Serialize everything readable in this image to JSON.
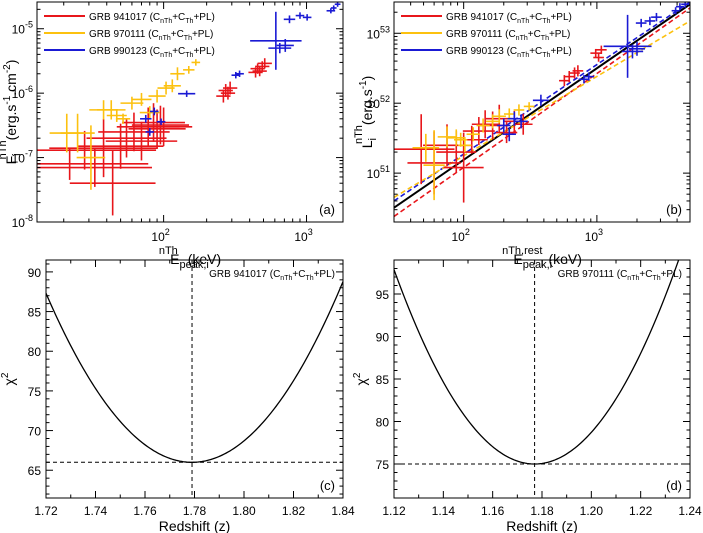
{
  "chart_data": [
    {
      "id": "a",
      "type": "scatter",
      "panel_label": "(a)",
      "xscale": "log",
      "yscale": "log",
      "xlim": [
        13,
        1800
      ],
      "ylim": [
        1e-08,
        2.6e-05
      ],
      "xticks": [
        {
          "v": 100,
          "base": "10",
          "exp": "2"
        },
        {
          "v": 1000,
          "base": "10",
          "exp": "3"
        }
      ],
      "yticks": [
        {
          "v": 1e-08,
          "base": "10",
          "exp": "-8"
        },
        {
          "v": 1e-07,
          "base": "10",
          "exp": "-7"
        },
        {
          "v": 1e-06,
          "base": "10",
          "exp": "-6"
        },
        {
          "v": 1e-05,
          "base": "10",
          "exp": "-5"
        }
      ],
      "xlabel": {
        "main": "E",
        "sub": "peak,i",
        "sup": "nTh",
        "unit": " (keV)"
      },
      "ylabel": {
        "main": "F",
        "sub": "i",
        "sup": "nTh",
        "unit": "(erg.s",
        "unitsup": "-1",
        "unit2": ".cm",
        "unitsup2": "-2",
        "unit3": ")"
      },
      "legend": {
        "position": "top-left",
        "entries": [
          {
            "prefix": "GRB 941017 (C",
            "s1": "nTh",
            "mid": "+C",
            "s2": "Th",
            "suffix": "+PL)",
            "color": "#e8161b"
          },
          {
            "prefix": "GRB 970111 (C",
            "s1": "nTh",
            "mid": "+C",
            "s2": "Th",
            "suffix": "+PL)",
            "color": "#fcc10f"
          },
          {
            "prefix": "GRB 990123 (C",
            "s1": "nTh",
            "mid": "+C",
            "s2": "Th",
            "suffix": "+PL)",
            "color": "#1a1ad4"
          }
        ]
      },
      "series": [
        {
          "name": "GRB 941017",
          "color": "#e8161b",
          "points": [
            [
              22,
              8e-08,
              0.55,
              0.25
            ],
            [
              28,
              1.3e-07,
              0.5,
              0.3
            ],
            [
              33,
              7e-08,
              0.4,
              0.3
            ],
            [
              38,
              1.4e-07,
              0.38,
              0.45
            ],
            [
              44,
              4e-08,
              0.3,
              0.5
            ],
            [
              50,
              1.5e-07,
              0.3,
              0.35
            ],
            [
              55,
              2e-07,
              0.28,
              0.3
            ],
            [
              62,
              2.5e-07,
              0.25,
              0.3
            ],
            [
              70,
              1.8e-07,
              0.25,
              0.3
            ],
            [
              78,
              3e-07,
              0.22,
              0.3
            ],
            [
              85,
              3.5e-07,
              0.22,
              0.3
            ],
            [
              90,
              2.8e-07,
              0.2,
              0.3
            ],
            [
              95,
              3.2e-07,
              0.2,
              0.3
            ],
            [
              100,
              3e-07,
              0.2,
              0.3
            ],
            [
              262,
              9e-07,
              0.05,
              0.1
            ],
            [
              272,
              1.1e-06,
              0.05,
              0.1
            ],
            [
              282,
              1e-06,
              0.05,
              0.1
            ],
            [
              292,
              1.2e-06,
              0.05,
              0.1
            ],
            [
              440,
              2.1e-06,
              0.05,
              0.08
            ],
            [
              455,
              2.4e-06,
              0.05,
              0.08
            ],
            [
              470,
              2.2e-06,
              0.05,
              0.08
            ],
            [
              490,
              2.6e-06,
              0.05,
              0.08
            ],
            [
              510,
              2.9e-06,
              0.05,
              0.08
            ]
          ]
        },
        {
          "name": "GRB 970111",
          "color": "#fcc10f",
          "points": [
            [
              21,
              2.4e-07,
              0.12,
              0.3
            ],
            [
              25,
              2.4e-07,
              0.12,
              0.3
            ],
            [
              31,
              1e-07,
              0.1,
              0.5
            ],
            [
              38,
              5.5e-07,
              0.1,
              0.15
            ],
            [
              43,
              5.5e-07,
              0.1,
              0.15
            ],
            [
              47,
              4.5e-07,
              0.07,
              0.1
            ],
            [
              52,
              4e-07,
              0.05,
              0.08
            ],
            [
              60,
              7e-07,
              0.08,
              0.1
            ],
            [
              70,
              8e-07,
              0.07,
              0.1
            ],
            [
              80,
              5e-07,
              0.07,
              0.1
            ],
            [
              90,
              9e-07,
              0.06,
              0.1
            ],
            [
              104,
              1.2e-06,
              0.06,
              0.1
            ],
            [
              115,
              1.3e-06,
              0.06,
              0.1
            ],
            [
              125,
              2e-06,
              0.05,
              0.1
            ],
            [
              150,
              2.3e-06,
              0.04,
              0.06
            ],
            [
              168,
              3e-06,
              0.03,
              0.05
            ]
          ]
        },
        {
          "name": "GRB 990123",
          "color": "#1a1ad4",
          "points": [
            [
              75,
              4e-07,
              0.04,
              0.06
            ],
            [
              80,
              2.5e-07,
              0.03,
              0.06
            ],
            [
              86,
              5.2e-07,
              0.03,
              0.06
            ],
            [
              96,
              3.6e-07,
              0.03,
              0.05
            ],
            [
              145,
              9.8e-07,
              0.06,
              0.05
            ],
            [
              320,
              1.9e-06,
              0.03,
              0.05
            ],
            [
              340,
              2e-06,
              0.03,
              0.05
            ],
            [
              610,
              6.5e-06,
              0.18,
              0.45
            ],
            [
              650,
              5e-06,
              0.08,
              0.08
            ],
            [
              710,
              5.5e-06,
              0.06,
              0.1
            ],
            [
              760,
              1.4e-05,
              0.04,
              0.06
            ],
            [
              900,
              1.6e-05,
              0.03,
              0.05
            ],
            [
              1010,
              1.5e-05,
              0.03,
              0.05
            ],
            [
              1480,
              1.9e-05,
              0.03,
              0.04
            ],
            [
              1550,
              2.1e-05,
              0.02,
              0.04
            ],
            [
              1650,
              2.4e-05,
              0.02,
              0.04
            ]
          ]
        }
      ]
    },
    {
      "id": "b",
      "type": "scatter",
      "panel_label": "(b)",
      "xscale": "log",
      "yscale": "log",
      "xlim": [
        30,
        5000
      ],
      "ylim": [
        2e+50,
        2.8e+53
      ],
      "xticks": [
        {
          "v": 100,
          "base": "10",
          "exp": "2"
        },
        {
          "v": 1000,
          "base": "10",
          "exp": "3"
        }
      ],
      "yticks": [
        {
          "v": 1e+51,
          "base": "10",
          "exp": "51"
        },
        {
          "v": 1e+52,
          "base": "10",
          "exp": "52"
        },
        {
          "v": 1e+53,
          "base": "10",
          "exp": "53"
        }
      ],
      "xlabel": {
        "main": "E",
        "sub": "peak,i",
        "sup": "nTh,rest",
        "unit": "(keV)"
      },
      "ylabel": {
        "main": "L",
        "sub": "i",
        "sup": "nTh",
        "unit": "(erg.s",
        "unitsup": "-1",
        "unit2": "",
        "unitsup2": "",
        "unit3": ")"
      },
      "legend": {
        "position": "top-left",
        "entries": [
          {
            "prefix": "GRB 941017 (C",
            "s1": "nTh",
            "mid": "+C",
            "s2": "Th",
            "suffix": "+PL)",
            "color": "#e8161b"
          },
          {
            "prefix": "GRB 970111 (C",
            "s1": "nTh",
            "mid": "+C",
            "s2": "Th",
            "suffix": "+PL)",
            "color": "#fcc10f"
          },
          {
            "prefix": "GRB 990123 (C",
            "s1": "nTh",
            "mid": "+C",
            "s2": "Th",
            "suffix": "+PL)",
            "color": "#1a1ad4"
          }
        ]
      },
      "fits": [
        {
          "name": "black fit",
          "color": "#000000",
          "dash": false,
          "x": [
            30,
            5000
          ],
          "y": [
            3.2e+50,
            2.6e+53
          ]
        },
        {
          "name": "red fit",
          "color": "#e8161b",
          "dash": true,
          "x": [
            30,
            5000
          ],
          "y": [
            2.4e+50,
            2.3e+53
          ]
        },
        {
          "name": "blue fit",
          "color": "#1a1ad4",
          "dash": true,
          "x": [
            30,
            5000
          ],
          "y": [
            4e+50,
            2.8e+53
          ]
        },
        {
          "name": "yellow fit",
          "color": "#fcc10f",
          "dash": true,
          "x": [
            30,
            5000
          ],
          "y": [
            4.5e+50,
            1.5e+53
          ]
        }
      ],
      "series": [
        {
          "name": "GRB 941017",
          "color": "#e8161b",
          "points": [
            [
              48,
              2.2e+51,
              0.25,
              0.5
            ],
            [
              60,
              1.4e+51,
              0.2,
              0.45
            ],
            [
              75,
              2.5e+51,
              0.18,
              0.3
            ],
            [
              88,
              2e+51,
              0.15,
              0.3
            ],
            [
              100,
              1.2e+51,
              0.15,
              0.5
            ],
            [
              115,
              3e+51,
              0.12,
              0.2
            ],
            [
              130,
              4e+51,
              0.12,
              0.2
            ],
            [
              145,
              5e+51,
              0.1,
              0.2
            ],
            [
              165,
              4.8e+51,
              0.1,
              0.2
            ],
            [
              185,
              6e+51,
              0.1,
              0.2
            ],
            [
              210,
              3.8e+51,
              0.08,
              0.15
            ],
            [
              240,
              5.5e+51,
              0.08,
              0.15
            ],
            [
              280,
              5e+51,
              0.07,
              0.15
            ],
            [
              570,
              2.1e+52,
              0.04,
              0.08
            ],
            [
              620,
              2.4e+52,
              0.04,
              0.08
            ],
            [
              680,
              2.7e+52,
              0.04,
              0.08
            ],
            [
              720,
              2.9e+52,
              0.04,
              0.08
            ],
            [
              980,
              5.2e+52,
              0.04,
              0.06
            ],
            [
              1030,
              4.5e+52,
              0.04,
              0.06
            ],
            [
              1080,
              5.8e+52,
              0.04,
              0.06
            ]
          ]
        },
        {
          "name": "GRB 970111",
          "color": "#fcc10f",
          "points": [
            [
              52,
              2.3e+51,
              0.1,
              0.2
            ],
            [
              60,
              1.3e+51,
              0.08,
              0.5
            ],
            [
              75,
              3.3e+51,
              0.07,
              0.15
            ],
            [
              88,
              3.2e+51,
              0.07,
              0.12
            ],
            [
              95,
              3e+51,
              0.05,
              0.1
            ],
            [
              102,
              2.5e+51,
              0.05,
              0.1
            ],
            [
              118,
              3.6e+51,
              0.05,
              0.1
            ],
            [
              140,
              4.8e+51,
              0.05,
              0.1
            ],
            [
              165,
              5.5e+51,
              0.05,
              0.1
            ],
            [
              185,
              6.5e+51,
              0.05,
              0.1
            ],
            [
              220,
              7e+51,
              0.04,
              0.08
            ],
            [
              260,
              8e+51,
              0.04,
              0.08
            ],
            [
              310,
              9e+51,
              0.04,
              0.06
            ]
          ]
        },
        {
          "name": "GRB 990123",
          "color": "#1a1ad4",
          "points": [
            [
              200,
              4.8e+51,
              0.05,
              0.1
            ],
            [
              220,
              3.6e+51,
              0.05,
              0.1
            ],
            [
              240,
              6e+51,
              0.05,
              0.1
            ],
            [
              270,
              5.5e+51,
              0.05,
              0.1
            ],
            [
              380,
              1.1e+52,
              0.06,
              0.08
            ],
            [
              800,
              2.2e+52,
              0.04,
              0.06
            ],
            [
              870,
              2.4e+52,
              0.04,
              0.06
            ],
            [
              1700,
              6.5e+52,
              0.18,
              0.45
            ],
            [
              1850,
              5.5e+52,
              0.08,
              0.1
            ],
            [
              2000,
              6e+52,
              0.06,
              0.1
            ],
            [
              2150,
              1.4e+53,
              0.04,
              0.06
            ],
            [
              2500,
              1.5e+53,
              0.04,
              0.06
            ],
            [
              2800,
              1.7e+53,
              0.04,
              0.06
            ],
            [
              3900,
              2.1e+53,
              0.03,
              0.05
            ],
            [
              4200,
              2.4e+53,
              0.03,
              0.05
            ],
            [
              4600,
              2.6e+53,
              0.03,
              0.05
            ]
          ]
        }
      ]
    },
    {
      "id": "c",
      "type": "line",
      "panel_label": "(c)",
      "annotation": {
        "prefix": "GRB 941017 (C",
        "s1": "nTh",
        "mid": "+C",
        "s2": "Th",
        "suffix": "+PL)"
      },
      "xlim": [
        1.72,
        1.84
      ],
      "ylim": [
        61.5,
        91.5
      ],
      "xticks": [
        1.72,
        1.74,
        1.76,
        1.78,
        1.8,
        1.82,
        1.84
      ],
      "xtick_labels": [
        "1.72",
        "1.74",
        "1.76",
        "1.78",
        "1.80",
        "1.82",
        "1.84"
      ],
      "yticks": [
        65,
        70,
        75,
        80,
        85,
        90
      ],
      "ytick_labels": [
        "65",
        "70",
        "75",
        "80",
        "85",
        "90"
      ],
      "xlabel": "Redshift (z)",
      "ylabel": {
        "main": "χ",
        "sup": "2"
      },
      "curve": {
        "z0": 1.779,
        "chi_min": 66,
        "a": 6120
      },
      "min_marker": {
        "x": 1.779,
        "y": 66
      }
    },
    {
      "id": "d",
      "type": "line",
      "panel_label": "(d)",
      "annotation": {
        "prefix": "GRB 970111 (C",
        "s1": "nTh",
        "mid": "+C",
        "s2": "Th",
        "suffix": "+PL)"
      },
      "xlim": [
        1.12,
        1.24
      ],
      "ylim": [
        71,
        99
      ],
      "xticks": [
        1.12,
        1.14,
        1.16,
        1.18,
        1.2,
        1.22,
        1.24
      ],
      "xtick_labels": [
        "1.12",
        "1.14",
        "1.16",
        "1.18",
        "1.20",
        "1.22",
        "1.24"
      ],
      "yticks": [
        75,
        80,
        85,
        90,
        95
      ],
      "ytick_labels": [
        "75",
        "80",
        "85",
        "90",
        "95"
      ],
      "xlabel": "Redshift (z)",
      "ylabel": {
        "main": "χ",
        "sup": "2"
      },
      "curve": {
        "z0": 1.177,
        "chi_min": 75,
        "a": 7040
      },
      "min_marker": {
        "x": 1.177,
        "y": 75
      }
    }
  ]
}
